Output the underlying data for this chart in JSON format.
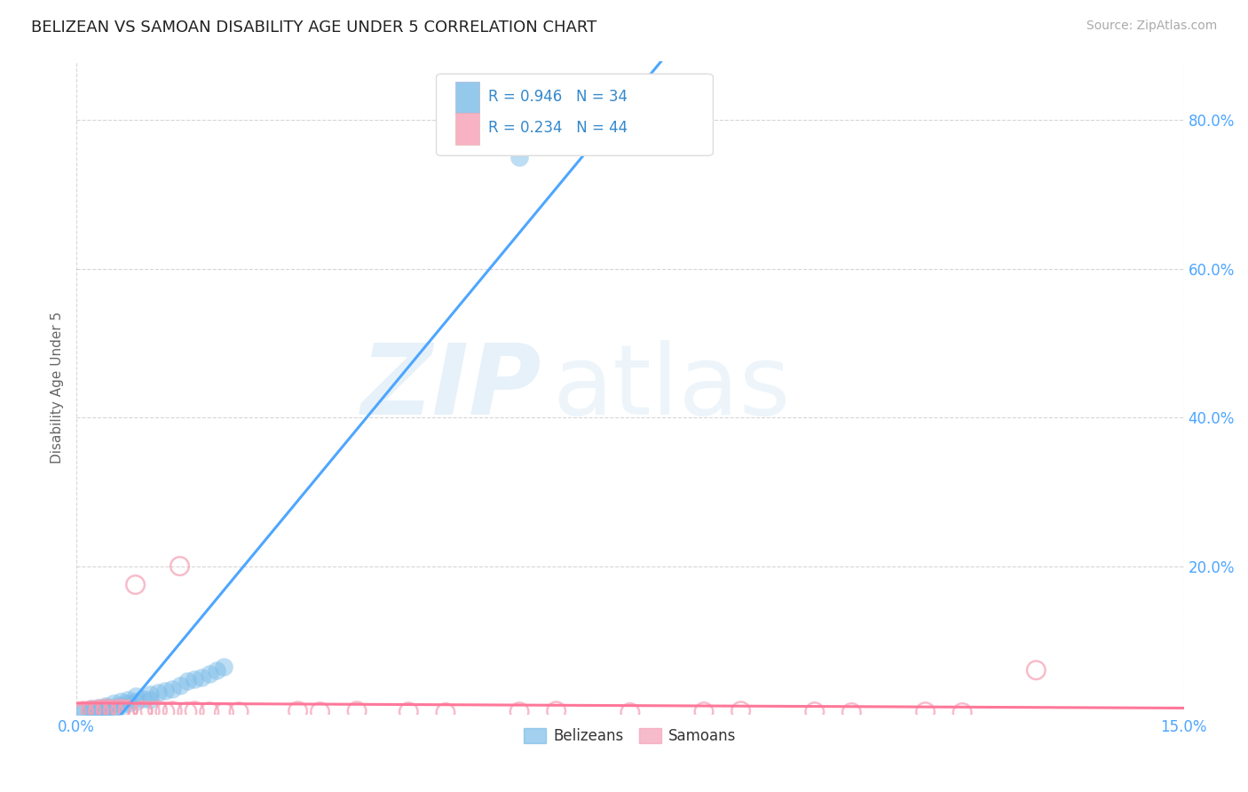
{
  "title": "BELIZEAN VS SAMOAN DISABILITY AGE UNDER 5 CORRELATION CHART",
  "source": "Source: ZipAtlas.com",
  "ylabel": "Disability Age Under 5",
  "xlim": [
    0.0,
    0.15
  ],
  "ylim": [
    0.0,
    0.88
  ],
  "xtick_positions": [
    0.0,
    0.15
  ],
  "xtick_labels": [
    "0.0%",
    "15.0%"
  ],
  "ytick_values": [
    0.2,
    0.4,
    0.6,
    0.8
  ],
  "ytick_labels": [
    "20.0%",
    "40.0%",
    "60.0%",
    "80.0%"
  ],
  "belizean_color": "#7bbce8",
  "samoan_color": "#f5a0b5",
  "belizean_line_color": "#4da6ff",
  "samoan_line_color": "#ff7799",
  "background_color": "#ffffff",
  "grid_color": "#cccccc",
  "legend_R_belizean": "R = 0.946",
  "legend_N_belizean": "N = 34",
  "legend_R_samoan": "R = 0.234",
  "legend_N_samoan": "N = 44",
  "watermark_zip": "ZIP",
  "watermark_atlas": "atlas",
  "tick_color": "#4da6ff",
  "belizean_x": [
    0.001,
    0.001,
    0.002,
    0.002,
    0.003,
    0.003,
    0.003,
    0.004,
    0.004,
    0.004,
    0.005,
    0.005,
    0.005,
    0.006,
    0.006,
    0.007,
    0.007,
    0.008,
    0.008,
    0.009,
    0.01,
    0.01,
    0.011,
    0.012,
    0.013,
    0.014,
    0.015,
    0.016,
    0.017,
    0.018,
    0.019,
    0.02,
    0.06,
    0.065
  ],
  "belizean_y": [
    0.003,
    0.005,
    0.006,
    0.008,
    0.005,
    0.007,
    0.01,
    0.006,
    0.009,
    0.012,
    0.008,
    0.01,
    0.015,
    0.012,
    0.018,
    0.015,
    0.02,
    0.018,
    0.025,
    0.022,
    0.02,
    0.028,
    0.03,
    0.032,
    0.035,
    0.04,
    0.045,
    0.048,
    0.05,
    0.055,
    0.06,
    0.065,
    0.75,
    0.77
  ],
  "samoan_x": [
    0.0,
    0.001,
    0.001,
    0.002,
    0.002,
    0.003,
    0.003,
    0.003,
    0.004,
    0.004,
    0.005,
    0.005,
    0.006,
    0.006,
    0.007,
    0.007,
    0.008,
    0.009,
    0.009,
    0.01,
    0.011,
    0.012,
    0.013,
    0.014,
    0.015,
    0.016,
    0.018,
    0.02,
    0.022,
    0.03,
    0.033,
    0.038,
    0.045,
    0.05,
    0.06,
    0.065,
    0.075,
    0.085,
    0.09,
    0.1,
    0.105,
    0.115,
    0.12,
    0.13
  ],
  "samoan_y": [
    0.003,
    0.003,
    0.005,
    0.004,
    0.006,
    0.005,
    0.007,
    0.004,
    0.006,
    0.008,
    0.007,
    0.005,
    0.006,
    0.008,
    0.006,
    0.007,
    0.175,
    0.004,
    0.006,
    0.005,
    0.006,
    0.004,
    0.005,
    0.2,
    0.004,
    0.005,
    0.004,
    0.003,
    0.004,
    0.005,
    0.004,
    0.005,
    0.004,
    0.003,
    0.004,
    0.005,
    0.003,
    0.004,
    0.005,
    0.004,
    0.003,
    0.004,
    0.003,
    0.06
  ]
}
